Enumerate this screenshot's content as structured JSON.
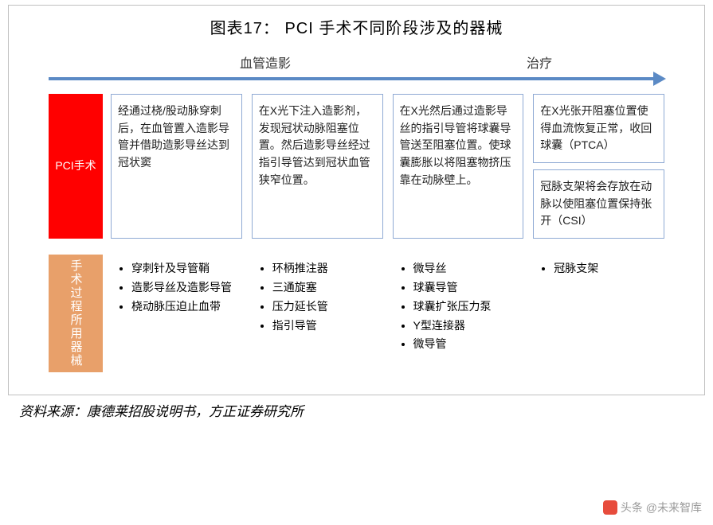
{
  "title": "图表17：  PCI 手术不同阶段涉及的器械",
  "phases": {
    "left": "血管造影",
    "right": "治疗"
  },
  "colors": {
    "arrow": "#5b8ac5",
    "row1_label_bg": "#ff0000",
    "row2_label_bg": "#e8a06a",
    "box_border": "#8faad4",
    "text": "#222222",
    "watermark": "#9a9a9a"
  },
  "row1": {
    "label": "PCI手术",
    "cols": [
      [
        "经通过桡/股动脉穿刺后，在血管置入造影导管并借助造影导丝达到冠状窦"
      ],
      [
        "在X光下注入造影剂，发现冠状动脉阻塞位置。然后造影导丝经过指引导管达到冠状血管狭窄位置。"
      ],
      [
        "在X光然后通过造影导丝的指引导管将球囊导管送至阻塞位置。使球囊膨胀以将阻塞物挤压靠在动脉壁上。"
      ],
      [
        "在X光张开阻塞位置使得血流恢复正常，收回球囊（PTCA）",
        "冠脉支架将会存放在动脉以使阻塞位置保持张开（CSI）"
      ]
    ]
  },
  "row2": {
    "label": "手术过程所用器械",
    "cols": [
      [
        "穿刺针及导管鞘",
        "造影导丝及造影导管",
        "桡动脉压迫止血带"
      ],
      [
        "环柄推注器",
        "三通旋塞",
        "压力延长管",
        "指引导管"
      ],
      [
        "微导丝",
        "球囊导管",
        "球囊扩张压力泵",
        "Y型连接器",
        "微导管"
      ],
      [
        "冠脉支架"
      ]
    ]
  },
  "source": "资料来源：康德莱招股说明书，方正证券研究所",
  "watermark": "头条 @未来智库"
}
